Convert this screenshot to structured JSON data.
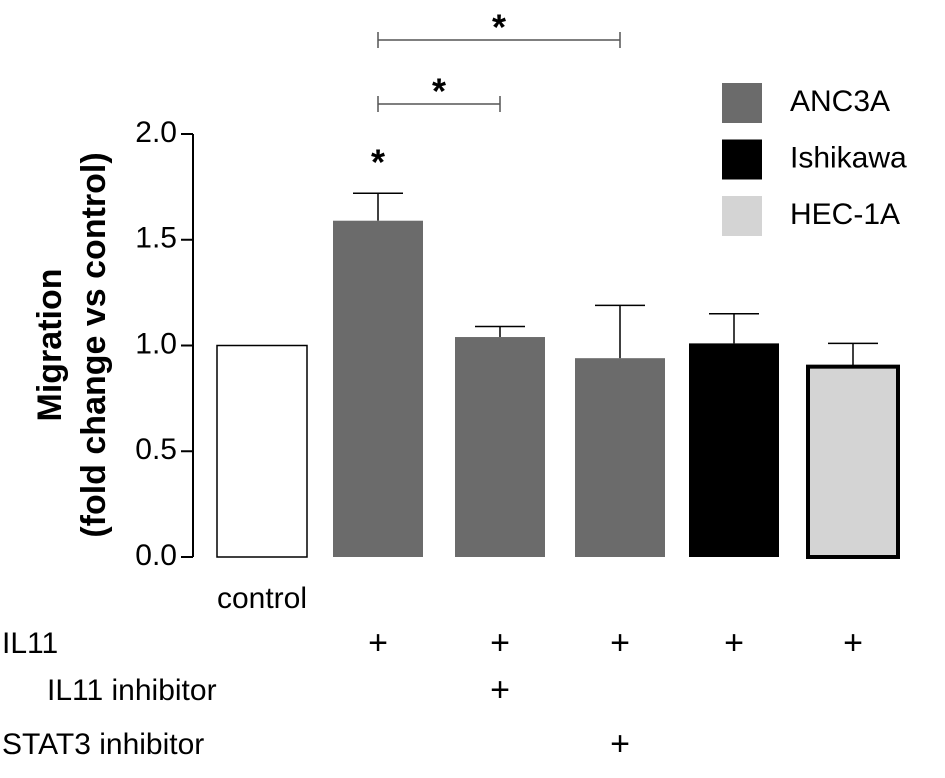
{
  "chart_data": {
    "type": "bar",
    "ylabel": [
      "Migration",
      "(fold change vs control)"
    ],
    "categories": [
      "control",
      null,
      null,
      null,
      null,
      null
    ],
    "series": [
      {
        "color": "#ffffff",
        "edgecolor": "#000000",
        "values": [
          1.0,
          null,
          null,
          null,
          null,
          null
        ]
      },
      {
        "name": "ANC3A",
        "color": "#6b6b6b",
        "values": [
          null,
          1.59,
          1.04,
          0.94,
          null,
          null
        ],
        "errors": [
          null,
          0.13,
          0.05,
          0.25,
          null,
          null
        ]
      },
      {
        "name": "Ishikawa",
        "color": "#000000",
        "values": [
          null,
          null,
          null,
          null,
          1.01,
          null
        ],
        "errors": [
          null,
          null,
          null,
          null,
          0.14,
          null
        ]
      },
      {
        "name": "HEC-1A",
        "color": "#d4d4d4",
        "edgecolor": "#000000",
        "values": [
          null,
          null,
          null,
          null,
          null,
          0.9
        ],
        "errors": [
          null,
          null,
          null,
          null,
          null,
          0.11
        ]
      }
    ],
    "conditions": [
      {
        "label": "IL11",
        "marks": [
          null,
          "+",
          "+",
          "+",
          "+",
          "+"
        ]
      },
      {
        "label": "IL11 inhibitor",
        "marks": [
          null,
          null,
          "+",
          null,
          null,
          null
        ]
      },
      {
        "label": "STAT3 inhibitor",
        "marks": [
          null,
          null,
          null,
          "+",
          null,
          null
        ]
      }
    ],
    "annotations": [
      {
        "text": "*",
        "from": 1,
        "to": 3
      },
      {
        "text": "*",
        "from": 1,
        "to": 2
      },
      {
        "text": "*",
        "from": 1,
        "to": 1
      }
    ],
    "ylim": [
      0,
      2
    ],
    "yticks": [
      {
        "value": 0,
        "label": "0.0"
      },
      0.5,
      {
        "value": 1,
        "label": "1.0"
      },
      1.5,
      {
        "value": 2,
        "label": "2.0"
      }
    ],
    "legend": "upper right"
  }
}
